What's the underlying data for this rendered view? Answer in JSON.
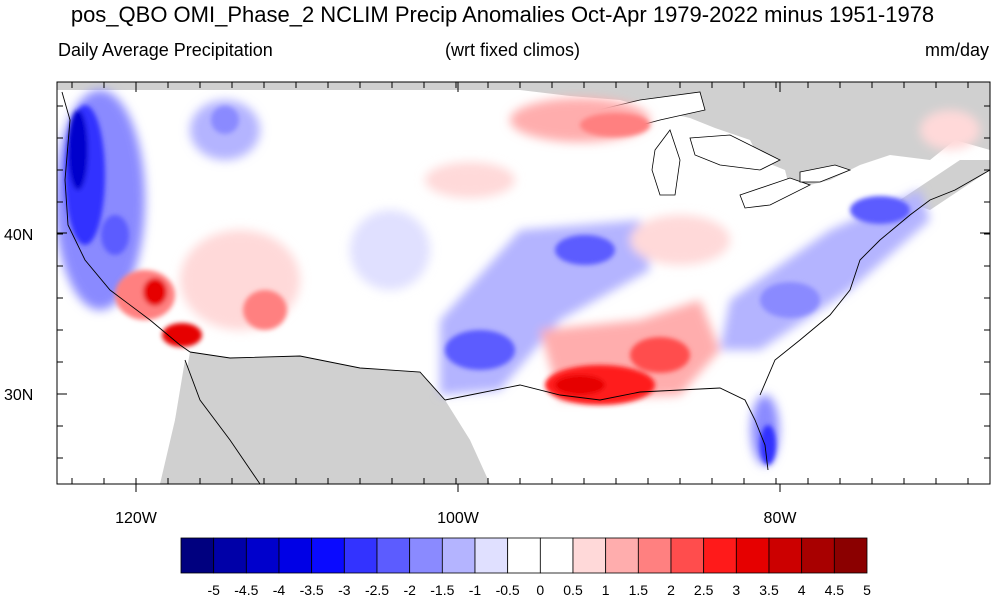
{
  "title": "pos_QBO OMI_Phase_2 NCLIM Precip Anomalies Oct-Apr 1979-2022 minus 1951-1978",
  "subtitle_left": "Daily Average Precipitation",
  "subtitle_center": "(wrt fixed climos)",
  "subtitle_right": "mm/day",
  "axes": {
    "lat_labels": [
      "40N",
      "30N"
    ],
    "lon_labels": [
      "120W",
      "100W",
      "80W"
    ]
  },
  "colorbar": {
    "labels": [
      "-5",
      "-4.5",
      "-4",
      "-3.5",
      "-3",
      "-2.5",
      "-2",
      "-1.5",
      "-1",
      "-0.5",
      "0",
      "0.5",
      "1",
      "1.5",
      "2",
      "2.5",
      "3",
      "3.5",
      "4",
      "4.5",
      "5"
    ],
    "colors": [
      "#00007f",
      "#0000a8",
      "#0000cc",
      "#0000e6",
      "#0a0aff",
      "#3333ff",
      "#5c5cff",
      "#8a8aff",
      "#b4b4ff",
      "#e0e0ff",
      "#ffffff",
      "#ffffff",
      "#ffd9d9",
      "#ffadad",
      "#ff8080",
      "#ff4d4d",
      "#ff1a1a",
      "#e60000",
      "#cc0000",
      "#a80000",
      "#8b0000"
    ]
  },
  "colors": {
    "land_masked": "#d0d0d0",
    "water": "#ffffff"
  }
}
